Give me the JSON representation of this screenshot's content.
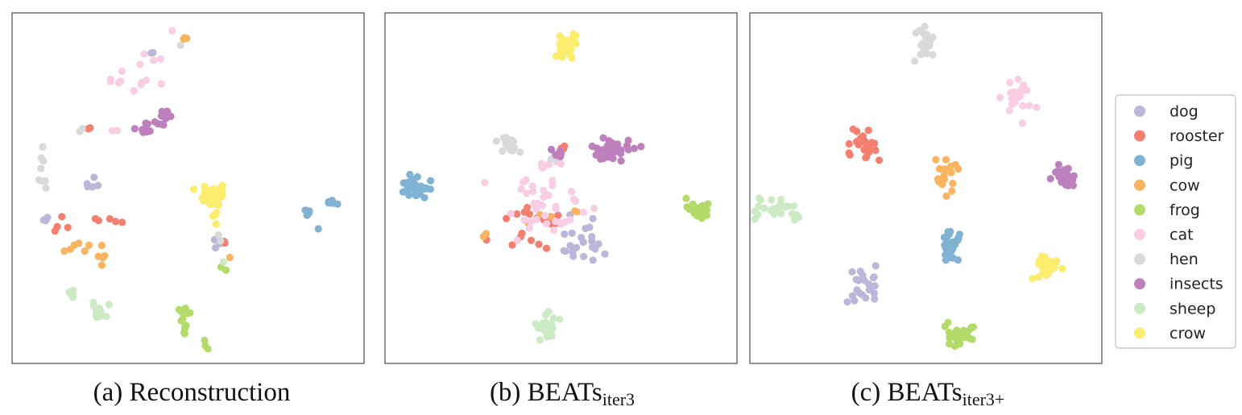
{
  "chart_data": [
    {
      "type": "scatter",
      "caption_prefix": "(a)",
      "caption_main": "Reconstruction",
      "caption_sub": "",
      "title": "",
      "xlabel": "",
      "ylabel": "",
      "xlim": [
        0,
        100
      ],
      "ylim": [
        0,
        100
      ],
      "axes_ticks": false,
      "grid": false,
      "clusters": [
        {
          "cls": "dog",
          "cx": 23,
          "cy": 51,
          "sx": 1.4,
          "sy": 1.6,
          "n": 5
        },
        {
          "cls": "dog",
          "cx": 9,
          "cy": 41,
          "sx": 1.0,
          "sy": 0.8,
          "n": 3
        },
        {
          "cls": "dog",
          "cx": 58,
          "cy": 34,
          "sx": 0.6,
          "sy": 1.0,
          "n": 3
        },
        {
          "cls": "dog",
          "cx": 40,
          "cy": 89,
          "sx": 0.4,
          "sy": 0.4,
          "n": 2
        },
        {
          "cls": "rooster",
          "cx": 26,
          "cy": 41,
          "sx": 2.8,
          "sy": 0.6,
          "n": 5
        },
        {
          "cls": "rooster",
          "cx": 11,
          "cy": 38,
          "sx": 2.0,
          "sy": 1.6,
          "n": 4
        },
        {
          "cls": "rooster",
          "cx": 61,
          "cy": 34,
          "sx": 0.5,
          "sy": 0.5,
          "n": 2
        },
        {
          "cls": "rooster",
          "cx": 22,
          "cy": 67,
          "sx": 0.4,
          "sy": 0.4,
          "n": 2
        },
        {
          "cls": "pig",
          "cx": 84,
          "cy": 43,
          "sx": 0.6,
          "sy": 0.5,
          "n": 6
        },
        {
          "cls": "pig",
          "cx": 91,
          "cy": 46,
          "sx": 1.0,
          "sy": 1.0,
          "n": 8
        },
        {
          "cls": "pig",
          "cx": 87,
          "cy": 38,
          "sx": 0.3,
          "sy": 0.3,
          "n": 1
        },
        {
          "cls": "cow",
          "cx": 16,
          "cy": 33,
          "sx": 5.0,
          "sy": 0.8,
          "n": 6
        },
        {
          "cls": "cow",
          "cx": 25,
          "cy": 30,
          "sx": 2.0,
          "sy": 2.0,
          "n": 5
        },
        {
          "cls": "cow",
          "cx": 49,
          "cy": 93,
          "sx": 0.4,
          "sy": 0.6,
          "n": 3
        },
        {
          "cls": "cow",
          "cx": 62,
          "cy": 30,
          "sx": 0.4,
          "sy": 0.4,
          "n": 1
        },
        {
          "cls": "frog",
          "cx": 49,
          "cy": 12,
          "sx": 1.0,
          "sy": 2.6,
          "n": 12
        },
        {
          "cls": "frog",
          "cx": 55,
          "cy": 5,
          "sx": 0.8,
          "sy": 0.8,
          "n": 3
        },
        {
          "cls": "frog",
          "cx": 60,
          "cy": 27,
          "sx": 0.8,
          "sy": 0.6,
          "n": 2
        },
        {
          "cls": "cat",
          "cx": 33,
          "cy": 81,
          "sx": 4.0,
          "sy": 1.5,
          "n": 10
        },
        {
          "cls": "cat",
          "cx": 39,
          "cy": 87,
          "sx": 2.0,
          "sy": 1.2,
          "n": 4
        },
        {
          "cls": "cat",
          "cx": 45,
          "cy": 95,
          "sx": 0.4,
          "sy": 0.4,
          "n": 1
        },
        {
          "cls": "cat",
          "cx": 30,
          "cy": 66,
          "sx": 0.6,
          "sy": 0.4,
          "n": 2
        },
        {
          "cls": "hen",
          "cx": 9,
          "cy": 57,
          "sx": 1.3,
          "sy": 3.8,
          "n": 8
        },
        {
          "cls": "hen",
          "cx": 20,
          "cy": 67,
          "sx": 0.4,
          "sy": 0.4,
          "n": 2
        },
        {
          "cls": "hen",
          "cx": 48,
          "cy": 91,
          "sx": 0.4,
          "sy": 0.4,
          "n": 1
        },
        {
          "cls": "hen",
          "cx": 59,
          "cy": 36,
          "sx": 0.5,
          "sy": 0.4,
          "n": 2
        },
        {
          "cls": "insects",
          "cx": 43,
          "cy": 70,
          "sx": 1.0,
          "sy": 1.3,
          "n": 14
        },
        {
          "cls": "insects",
          "cx": 38,
          "cy": 67,
          "sx": 1.0,
          "sy": 0.8,
          "n": 10
        },
        {
          "cls": "insects",
          "cx": 34,
          "cy": 67,
          "sx": 0.4,
          "sy": 0.4,
          "n": 1
        },
        {
          "cls": "sheep",
          "cx": 24,
          "cy": 15,
          "sx": 1.2,
          "sy": 1.4,
          "n": 14
        },
        {
          "cls": "sheep",
          "cx": 17,
          "cy": 20,
          "sx": 0.6,
          "sy": 0.5,
          "n": 5
        },
        {
          "cls": "sheep",
          "cx": 60,
          "cy": 29,
          "sx": 0.4,
          "sy": 0.4,
          "n": 1
        },
        {
          "cls": "crow",
          "cx": 57,
          "cy": 47,
          "sx": 2.2,
          "sy": 2.0,
          "n": 30
        },
        {
          "cls": "crow",
          "cx": 58,
          "cy": 40,
          "sx": 0.3,
          "sy": 0.3,
          "n": 1
        }
      ]
    },
    {
      "type": "scatter",
      "caption_prefix": "(b)",
      "caption_main": "BEATs",
      "caption_sub": "iter3",
      "title": "",
      "xlabel": "",
      "ylabel": "",
      "xlim": [
        0,
        100
      ],
      "ylim": [
        0,
        100
      ],
      "axes_ticks": false,
      "grid": false,
      "clusters": [
        {
          "cls": "dog",
          "cx": 55,
          "cy": 35,
          "sx": 3.8,
          "sy": 3.2,
          "n": 22
        },
        {
          "cls": "rooster",
          "cx": 43,
          "cy": 40,
          "sx": 5.0,
          "sy": 3.8,
          "n": 20
        },
        {
          "cls": "rooster",
          "cx": 29,
          "cy": 35,
          "sx": 0.4,
          "sy": 0.4,
          "n": 1
        },
        {
          "cls": "rooster",
          "cx": 50,
          "cy": 62,
          "sx": 0.6,
          "sy": 0.6,
          "n": 3
        },
        {
          "cls": "pig",
          "cx": 9,
          "cy": 50,
          "sx": 1.8,
          "sy": 1.4,
          "n": 30
        },
        {
          "cls": "cow",
          "cx": 29,
          "cy": 36,
          "sx": 0.4,
          "sy": 0.4,
          "n": 2
        },
        {
          "cls": "cow",
          "cx": 43,
          "cy": 42,
          "sx": 3.0,
          "sy": 2.0,
          "n": 3
        },
        {
          "cls": "cow",
          "cx": 54,
          "cy": 43,
          "sx": 0.5,
          "sy": 0.5,
          "n": 2
        },
        {
          "cls": "frog",
          "cx": 89,
          "cy": 44,
          "sx": 1.6,
          "sy": 1.6,
          "n": 30
        },
        {
          "cls": "cat",
          "cx": 44,
          "cy": 44,
          "sx": 6.0,
          "sy": 4.5,
          "n": 40
        },
        {
          "cls": "cat",
          "cx": 48,
          "cy": 57,
          "sx": 2.0,
          "sy": 0.8,
          "n": 6
        },
        {
          "cls": "hen",
          "cx": 35,
          "cy": 62,
          "sx": 2.0,
          "sy": 1.8,
          "n": 16
        },
        {
          "cls": "hen",
          "cx": 48,
          "cy": 59,
          "sx": 1.0,
          "sy": 0.8,
          "n": 4
        },
        {
          "cls": "insects",
          "cx": 64,
          "cy": 61,
          "sx": 3.0,
          "sy": 1.6,
          "n": 40
        },
        {
          "cls": "insects",
          "cx": 50,
          "cy": 60,
          "sx": 1.5,
          "sy": 1.0,
          "n": 6
        },
        {
          "cls": "sheep",
          "cx": 46,
          "cy": 10,
          "sx": 1.6,
          "sy": 2.0,
          "n": 30
        },
        {
          "cls": "crow",
          "cx": 52,
          "cy": 91,
          "sx": 1.6,
          "sy": 1.6,
          "n": 30
        }
      ]
    },
    {
      "type": "scatter",
      "caption_prefix": "(c)",
      "caption_main": "BEATs",
      "caption_sub": "iter3+",
      "title": "",
      "xlabel": "",
      "ylabel": "",
      "xlim": [
        0,
        100
      ],
      "ylim": [
        0,
        100
      ],
      "axes_ticks": false,
      "grid": false,
      "clusters": [
        {
          "cls": "dog",
          "cx": 33,
          "cy": 22,
          "sx": 2.4,
          "sy": 2.6,
          "n": 22
        },
        {
          "cls": "rooster",
          "cx": 32,
          "cy": 63,
          "sx": 2.0,
          "sy": 2.5,
          "n": 22
        },
        {
          "cls": "pig",
          "cx": 57,
          "cy": 34,
          "sx": 1.6,
          "sy": 2.5,
          "n": 28
        },
        {
          "cls": "cow",
          "cx": 55,
          "cy": 55,
          "sx": 1.8,
          "sy": 3.0,
          "n": 20
        },
        {
          "cls": "frog",
          "cx": 59,
          "cy": 8,
          "sx": 2.4,
          "sy": 2.0,
          "n": 30
        },
        {
          "cls": "cat",
          "cx": 76,
          "cy": 76,
          "sx": 2.2,
          "sy": 2.6,
          "n": 24
        },
        {
          "cls": "hen",
          "cx": 50,
          "cy": 91,
          "sx": 1.4,
          "sy": 2.4,
          "n": 24
        },
        {
          "cls": "insects",
          "cx": 89,
          "cy": 53,
          "sx": 1.8,
          "sy": 2.0,
          "n": 26
        },
        {
          "cls": "sheep",
          "cx": 8,
          "cy": 44,
          "sx": 3.8,
          "sy": 1.2,
          "n": 30
        },
        {
          "cls": "crow",
          "cx": 85,
          "cy": 28,
          "sx": 2.2,
          "sy": 1.6,
          "n": 30
        }
      ]
    }
  ],
  "legend": {
    "placement": "right",
    "entries": [
      {
        "label": "dog",
        "color": "#bcb6da"
      },
      {
        "label": "rooster",
        "color": "#f47f70"
      },
      {
        "label": "pig",
        "color": "#80b2d4"
      },
      {
        "label": "cow",
        "color": "#f8b461"
      },
      {
        "label": "frog",
        "color": "#b2db6a"
      },
      {
        "label": "cat",
        "color": "#f9cde3"
      },
      {
        "label": "hen",
        "color": "#d9d9d9"
      },
      {
        "label": "insects",
        "color": "#bd80bd"
      },
      {
        "label": "sheep",
        "color": "#ccebc5"
      },
      {
        "label": "crow",
        "color": "#fbed6e"
      }
    ]
  }
}
